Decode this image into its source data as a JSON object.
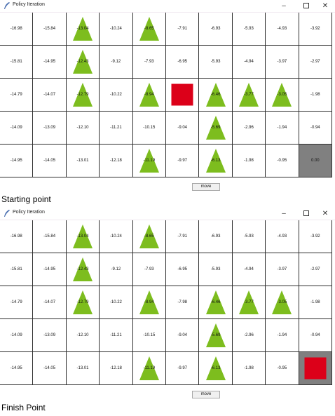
{
  "windows": [
    {
      "title": "Policy Iteration",
      "move_label": "move",
      "caption": "Starting point",
      "cells": [
        [
          "-16.98",
          "-15.84",
          "-13.04",
          "-10.24",
          "-8.65",
          "-7.91",
          "-6.93",
          "-5.93",
          "-4.93",
          "-3.92"
        ],
        [
          "-15.81",
          "-14.95",
          "-12.43",
          "-9.12",
          "-7.93",
          "-6.95",
          "-5.93",
          "-4.94",
          "-3.97",
          "-2.97"
        ],
        [
          "-14.79",
          "-14.07",
          "-12.79",
          "-10.22",
          "-8.94",
          "",
          "-6.46",
          "-3.77",
          "-3.05",
          "-1.98"
        ],
        [
          "-14.09",
          "-13.09",
          "-12.10",
          "-11.21",
          "-10.15",
          "-9.04",
          "-5.69",
          "-2.96",
          "-1.94",
          "-0.94"
        ],
        [
          "-14.95",
          "-14.05",
          "-13.01",
          "-12.18",
          "-11.19",
          "-9.97",
          "-6.13",
          "-1.98",
          "-0.95",
          "0.00"
        ]
      ],
      "triangles": [
        [
          0,
          2
        ],
        [
          0,
          4
        ],
        [
          1,
          2
        ],
        [
          2,
          2
        ],
        [
          2,
          4
        ],
        [
          2,
          6
        ],
        [
          2,
          7
        ],
        [
          2,
          8
        ],
        [
          3,
          6
        ],
        [
          4,
          4
        ],
        [
          4,
          6
        ]
      ],
      "agent": [
        2,
        5
      ],
      "goal": [
        4,
        9
      ]
    },
    {
      "title": "Policy Iteration",
      "move_label": "move",
      "caption": "Finish Point",
      "cells": [
        [
          "-16.98",
          "-15.84",
          "-13.04",
          "-10.24",
          "-8.65",
          "-7.91",
          "-6.93",
          "-5.93",
          "-4.93",
          "-3.92"
        ],
        [
          "-15.81",
          "-14.95",
          "-12.43",
          "-9.12",
          "-7.93",
          "-6.95",
          "-5.93",
          "-4.94",
          "-3.97",
          "-2.97"
        ],
        [
          "-14.79",
          "-14.07",
          "-12.79",
          "-10.22",
          "-8.94",
          "-7.98",
          "-6.46",
          "-3.77",
          "-3.05",
          "-1.98"
        ],
        [
          "-14.09",
          "-13.09",
          "-12.10",
          "-11.21",
          "-10.15",
          "-9.04",
          "-5.69",
          "-2.96",
          "-1.94",
          "-0.94"
        ],
        [
          "-14.95",
          "-14.05",
          "-13.01",
          "-12.18",
          "-11.19",
          "-9.97",
          "-6.13",
          "-1.98",
          "-0.95",
          ""
        ]
      ],
      "triangles": [
        [
          0,
          2
        ],
        [
          0,
          4
        ],
        [
          1,
          2
        ],
        [
          2,
          2
        ],
        [
          2,
          4
        ],
        [
          2,
          6
        ],
        [
          2,
          7
        ],
        [
          2,
          8
        ],
        [
          3,
          6
        ],
        [
          4,
          4
        ],
        [
          4,
          6
        ]
      ],
      "agent": [
        4,
        9
      ],
      "goal": [
        4,
        9
      ]
    }
  ],
  "colors": {
    "triangle": "#7dbd1e",
    "agent": "#dc0019",
    "goal": "#808080"
  },
  "icons": {
    "app": "feather-icon",
    "minimize": "minimize-icon",
    "maximize": "maximize-icon",
    "close": "close-icon"
  }
}
